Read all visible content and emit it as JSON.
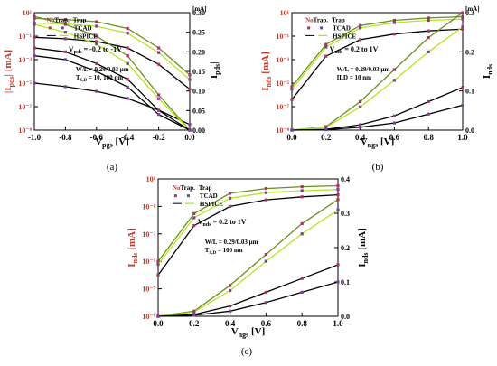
{
  "figure": {
    "panels": [
      {
        "id": "a",
        "caption": "(a)",
        "xlabel_main": "V",
        "xlabel_sub": "pgs",
        "xlabel_unit": " [V]",
        "ylabel_left_main": "|I",
        "ylabel_left_sub": "pds",
        "ylabel_left_unit": "| [mA]",
        "ylabel_right_main": "|I",
        "ylabel_right_sub": "pds",
        "ylabel_right_unit": "|",
        "x_ticks": [
          "-1.0",
          "-0.8",
          "-0.6",
          "-0.4",
          "-0.2",
          "0.0"
        ],
        "left_ticks": [
          "10¹",
          "10⁻¹",
          "10⁻³",
          "10⁻⁵",
          "10⁻⁷",
          "10⁻⁹"
        ],
        "right_ticks": [
          "0.00",
          "0.05",
          "0.10",
          "0.15",
          "0.20",
          "0.25",
          "0.30"
        ],
        "right_unit": "[mA]",
        "annotations": [
          "V",
          "pds",
          " = -0.2 to -1V",
          "W/L = 0.29/0.03 μm",
          "T",
          "S,D",
          " = 10, 100 nm"
        ],
        "legend_header": [
          "No",
          "Trap.",
          "Trap"
        ],
        "legend_entries": [
          "TCAD",
          "HSPICE"
        ]
      },
      {
        "id": "b",
        "caption": "(b)",
        "xlabel_main": "V",
        "xlabel_sub": "ngs",
        "xlabel_unit": " [V]",
        "ylabel_left_main": "I",
        "ylabel_left_sub": "nds",
        "ylabel_left_unit": " [mA]",
        "ylabel_right_main": "I",
        "ylabel_right_sub": "nds",
        "ylabel_right_unit": "",
        "x_ticks": [
          "0.0",
          "0.2",
          "0.4",
          "0.6",
          "0.8",
          "1.0"
        ],
        "left_ticks": [
          "10¹",
          "10⁻¹",
          "10⁻³",
          "10⁻⁵",
          "10⁻⁷",
          "10⁻⁹"
        ],
        "right_ticks": [
          "0.0",
          "0.1",
          "0.2",
          "0.3"
        ],
        "right_unit": "[mA]",
        "annotations": [
          "V",
          "nds",
          " = 0.2 to 1V",
          "W/L = 0.29/0.03 μm",
          "ILD = 10 nm"
        ],
        "legend_header": [
          "No",
          "Trap.",
          "Trap"
        ],
        "legend_entries": [
          "TCAD",
          "HSPICE"
        ]
      },
      {
        "id": "c",
        "caption": "(c)",
        "xlabel_main": "V",
        "xlabel_sub": "ngs",
        "xlabel_unit": " [V]",
        "ylabel_left_main": "I",
        "ylabel_left_sub": "nds",
        "ylabel_left_unit": " [mA]",
        "ylabel_right_main": "I",
        "ylabel_right_sub": "nds",
        "ylabel_right_unit": " [mA]",
        "x_ticks": [
          "0.0",
          "0.2",
          "0.4",
          "0.6",
          "0.8",
          "1.0"
        ],
        "left_ticks": [
          "10¹",
          "10⁻¹",
          "10⁻³",
          "10⁻⁵",
          "10⁻⁷",
          "10⁻⁹"
        ],
        "right_ticks": [
          "0.0",
          "0.1",
          "0.2",
          "0.3",
          "0.4"
        ],
        "right_unit": "",
        "annotations": [
          "V",
          "nds",
          " = 0.2 to 1V",
          "W/L = 0.29/0.03 μm",
          "T",
          "S,D",
          " = 100 nm"
        ],
        "legend_header": [
          "No",
          "Trap.",
          "Trap"
        ],
        "legend_entries": [
          "TCAD",
          "HSPICE"
        ]
      }
    ]
  },
  "colors": {
    "axis": "#000000",
    "left_axis_label": "#c0392b",
    "no_trap_marker": "#b03060",
    "trap_marker": "#7b3fa0",
    "hspice_no_trap": "#6b8e23",
    "hspice_trap": "#b5e61d",
    "tcad_line": "#000000",
    "ref_line": "#d94040"
  },
  "chart_data": [
    {
      "type": "line",
      "panel": "a",
      "x_axis": {
        "label": "V_pgs [V]",
        "range": [
          -1.0,
          0.0
        ]
      },
      "y_left": {
        "label": "|I_pds| [mA]",
        "scale": "log",
        "range": [
          1e-09,
          10
        ]
      },
      "y_right": {
        "label": "|I_pds| [mA]",
        "scale": "linear",
        "range": [
          0.0,
          0.3
        ]
      },
      "families": [
        {
          "axis": "left",
          "style": "hspice",
          "x": [
            -1.0,
            -0.8,
            -0.6,
            -0.4,
            -0.2,
            0.0
          ],
          "curves": [
            [
              3.2,
              2.6,
              1.7,
              0.45,
              0.01,
              5e-05
            ],
            [
              1.3,
              1.1,
              0.7,
              0.18,
              0.004,
              2e-05
            ],
            [
              0.08,
              0.06,
              0.035,
              0.01,
              0.0004,
              3e-06
            ],
            [
              1e-05,
              5e-06,
              2e-06,
              5e-07,
              5e-08,
              3e-09
            ]
          ]
        },
        {
          "axis": "right",
          "style": "hspice",
          "x": [
            -1.0,
            -0.8,
            -0.6,
            -0.4,
            -0.2,
            0.0
          ],
          "curves": [
            [
              0.29,
              0.27,
              0.24,
              0.19,
              0.09,
              0.0
            ],
            [
              0.27,
              0.25,
              0.22,
              0.17,
              0.08,
              0.0
            ],
            [
              0.21,
              0.2,
              0.17,
              0.13,
              0.05,
              0.0
            ],
            [
              0.19,
              0.18,
              0.15,
              0.11,
              0.04,
              0.0
            ]
          ]
        }
      ]
    },
    {
      "type": "line",
      "panel": "b",
      "x_axis": {
        "label": "V_ngs [V]",
        "range": [
          0.0,
          1.0
        ]
      },
      "y_left": {
        "label": "I_nds [mA]",
        "scale": "log",
        "range": [
          1e-09,
          10
        ]
      },
      "y_right": {
        "label": "I_nds [mA]",
        "scale": "linear",
        "range": [
          0.0,
          0.33
        ]
      },
      "families": [
        {
          "axis": "left",
          "style": "hspice",
          "x": [
            0.0,
            0.2,
            0.4,
            0.6,
            0.8,
            1.0
          ],
          "curves": [
            [
              5e-06,
              0.02,
              0.8,
              2.2,
              3.5,
              4.5
            ],
            [
              3e-06,
              0.012,
              0.5,
              1.4,
              2.2,
              2.8
            ],
            [
              4e-07,
              0.002,
              0.05,
              0.15,
              0.28,
              0.4
            ]
          ]
        },
        {
          "axis": "right",
          "style": "hspice",
          "x": [
            0.0,
            0.2,
            0.4,
            0.6,
            0.8,
            1.0
          ],
          "curves": [
            [
              0.0,
              0.01,
              0.08,
              0.17,
              0.26,
              0.33
            ],
            [
              0.0,
              0.008,
              0.065,
              0.14,
              0.22,
              0.29
            ],
            [
              0.0,
              0.002,
              0.015,
              0.04,
              0.08,
              0.12
            ],
            [
              0.0,
              0.001,
              0.008,
              0.02,
              0.045,
              0.07
            ]
          ]
        }
      ]
    },
    {
      "type": "line",
      "panel": "c",
      "x_axis": {
        "label": "V_ngs [V]",
        "range": [
          0.0,
          1.0
        ]
      },
      "y_left": {
        "label": "I_nds [mA]",
        "scale": "log",
        "range": [
          1e-09,
          10
        ]
      },
      "y_right": {
        "label": "I_nds [mA]",
        "scale": "linear",
        "range": [
          0.0,
          0.4
        ]
      },
      "families": [
        {
          "axis": "left",
          "style": "hspice",
          "x": [
            0.0,
            0.2,
            0.4,
            0.6,
            0.8,
            1.0
          ],
          "curves": [
            [
              1e-05,
              0.03,
              0.9,
              2.0,
              2.7,
              3.2
            ],
            [
              6e-06,
              0.015,
              0.4,
              1.0,
              1.4,
              1.7
            ],
            [
              1e-06,
              0.004,
              0.1,
              0.3,
              0.5,
              0.7
            ]
          ]
        },
        {
          "axis": "right",
          "style": "hspice",
          "x": [
            0.0,
            0.2,
            0.4,
            0.6,
            0.8,
            1.0
          ],
          "curves": [
            [
              0.0,
              0.015,
              0.09,
              0.18,
              0.27,
              0.34
            ],
            [
              0.0,
              0.012,
              0.075,
              0.16,
              0.24,
              0.31
            ],
            [
              0.0,
              0.005,
              0.03,
              0.07,
              0.11,
              0.15
            ],
            [
              0.0,
              0.003,
              0.015,
              0.04,
              0.07,
              0.1
            ]
          ]
        }
      ]
    }
  ]
}
